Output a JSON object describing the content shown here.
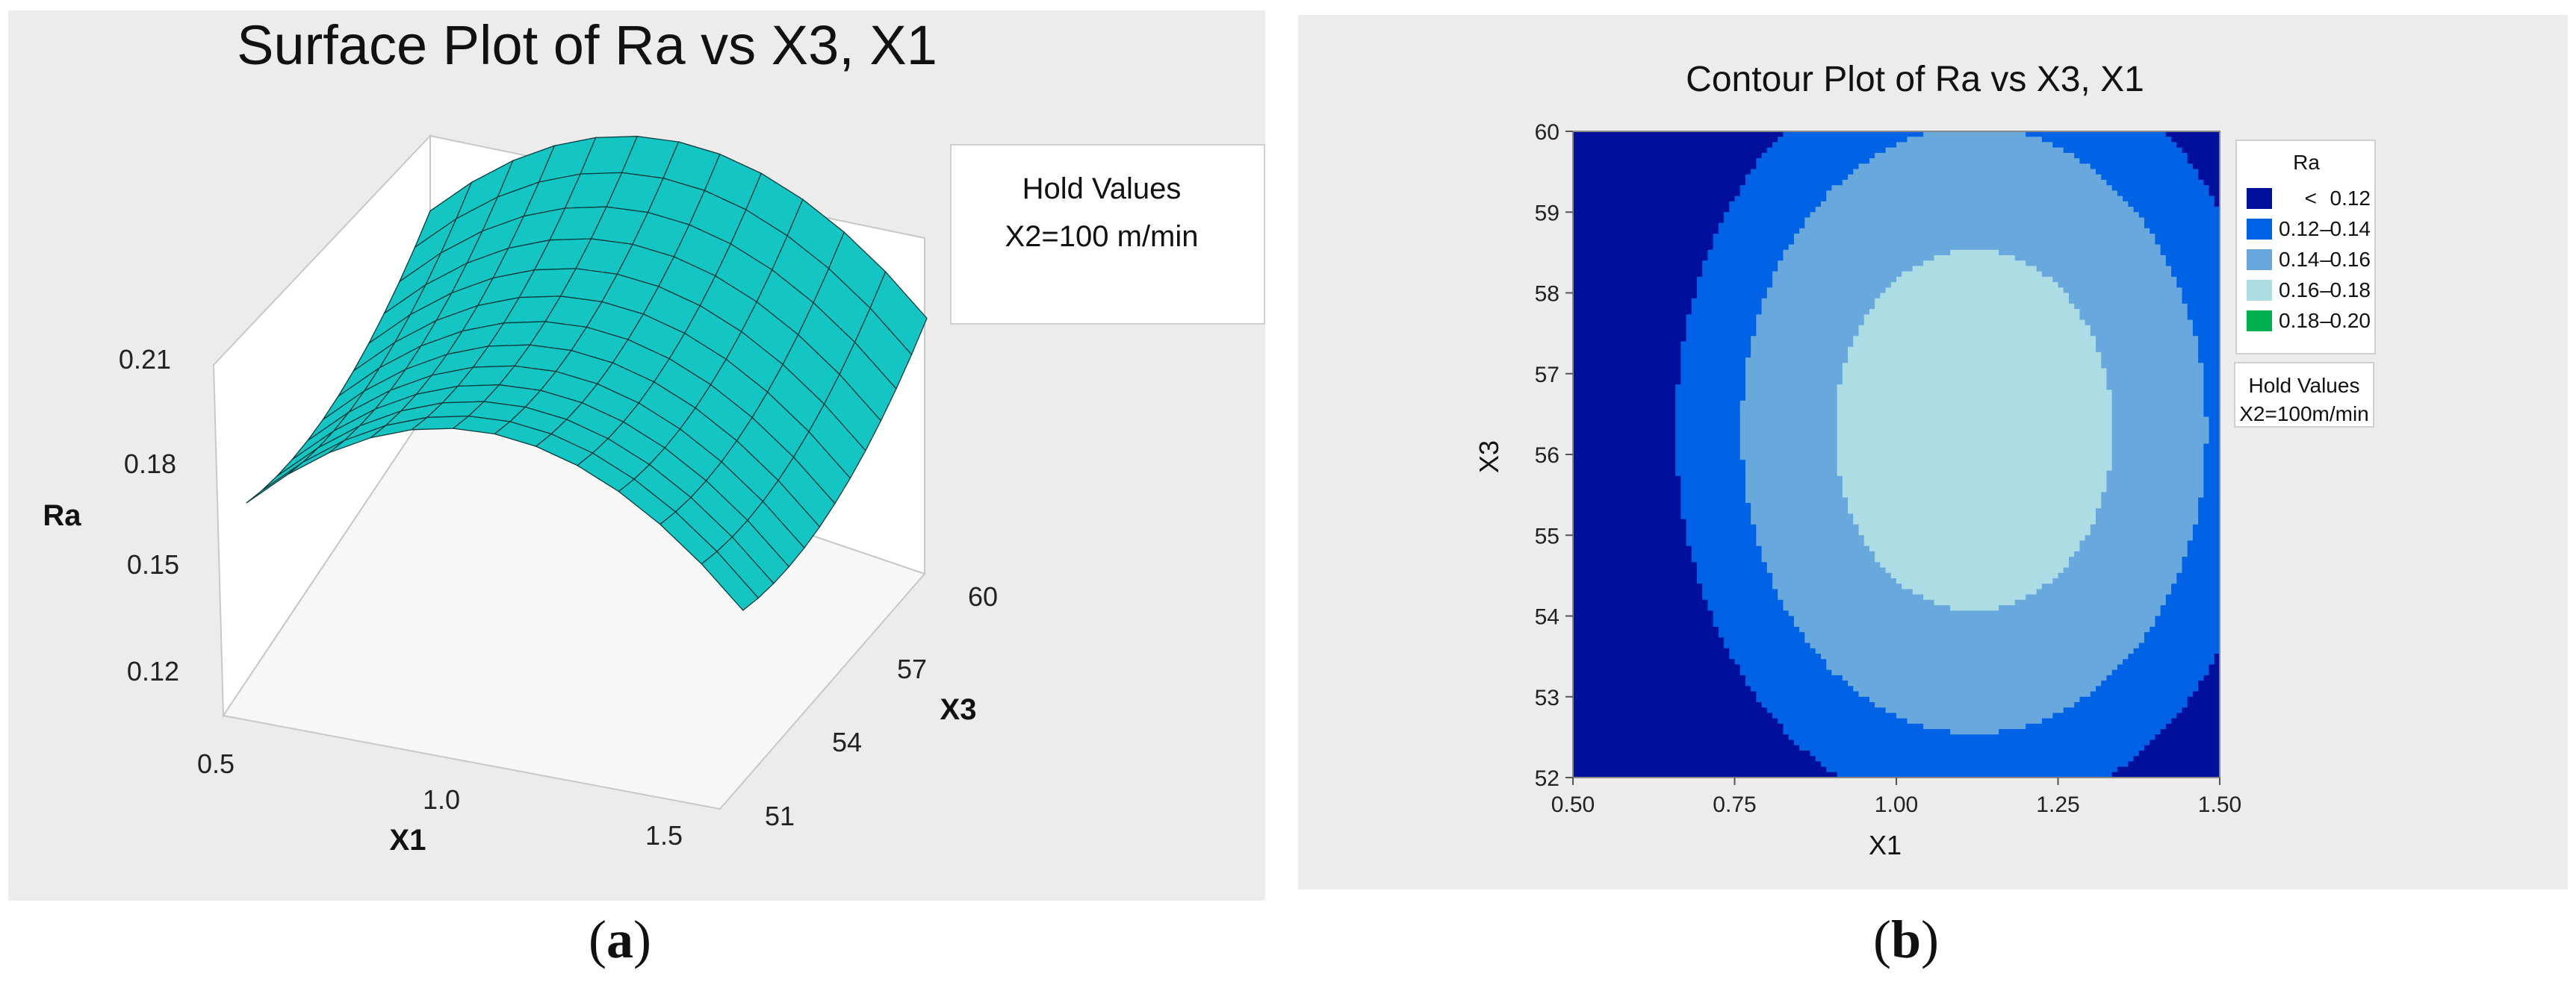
{
  "panel_a": {
    "caption_open": "(",
    "caption_letter": "a",
    "caption_close": ")",
    "hold_title": "Hold Values",
    "hold_value": "X2=100 m/min"
  },
  "panel_b": {
    "caption_open": "(",
    "caption_letter": "b",
    "caption_close": ")",
    "legend_title": "Ra",
    "hold_title": "Hold Values",
    "hold_value": "X2=100m/min"
  },
  "colors": {
    "surface": "#13c6c4",
    "c_lt_012": "#00109c",
    "c_012_014": "#0062e4",
    "c_014_016": "#68a8dc",
    "c_016_018": "#acdce4",
    "c_018_020": "#00b050"
  },
  "chart_data": [
    {
      "type": "surface",
      "title": "Surface Plot of Ra vs X3, X1",
      "xlabel": "X1",
      "ylabel": "X3",
      "zlabel": "Ra",
      "x_ticks": [
        "0.5",
        "1.0",
        "1.5"
      ],
      "y_ticks": [
        "51",
        "54",
        "57",
        "60"
      ],
      "z_ticks": [
        "0.12",
        "0.15",
        "0.18",
        "0.21"
      ],
      "xlim": [
        0.5,
        1.5
      ],
      "ylim": [
        51,
        60
      ],
      "zlim": [
        0.11,
        0.22
      ],
      "surface_model": "Ra = 0.15 + 0.14*(X1-0.5)*(1.5-X1) + 0.0007*(X3-56)^2 - 0.004*(X1-1) + 0.0006*(X3-56)",
      "grid": "x1 0.5..1.5 step 0.0833, x3 52..60 step 0.6667"
    },
    {
      "type": "contour",
      "title": "Contour Plot of Ra vs X3, X1",
      "xlabel": "X1",
      "ylabel": "X3",
      "x_ticks": [
        "0.50",
        "0.75",
        "1.00",
        "1.25",
        "1.50"
      ],
      "y_ticks": [
        "52",
        "53",
        "54",
        "55",
        "56",
        "57",
        "58",
        "59",
        "60"
      ],
      "xlim": [
        0.5,
        1.5
      ],
      "ylim": [
        52,
        60
      ],
      "levels": [
        {
          "label": "<",
          "range": "0.12",
          "color": "#00109c"
        },
        {
          "label": "0.12",
          "range": "0.14",
          "color": "#0062e4"
        },
        {
          "label": "0.14",
          "range": "0.16",
          "color": "#68a8dc"
        },
        {
          "label": "0.16",
          "range": "0.18",
          "color": "#acdce4"
        },
        {
          "label": "0.18",
          "range": "0.20",
          "color": "#00b050"
        }
      ],
      "legend_placement": "right",
      "surface_model": "Ra = 0.171 - 0.24*(X1-1.12)^2 - 0.0022*(X3-56.3)^2"
    }
  ]
}
